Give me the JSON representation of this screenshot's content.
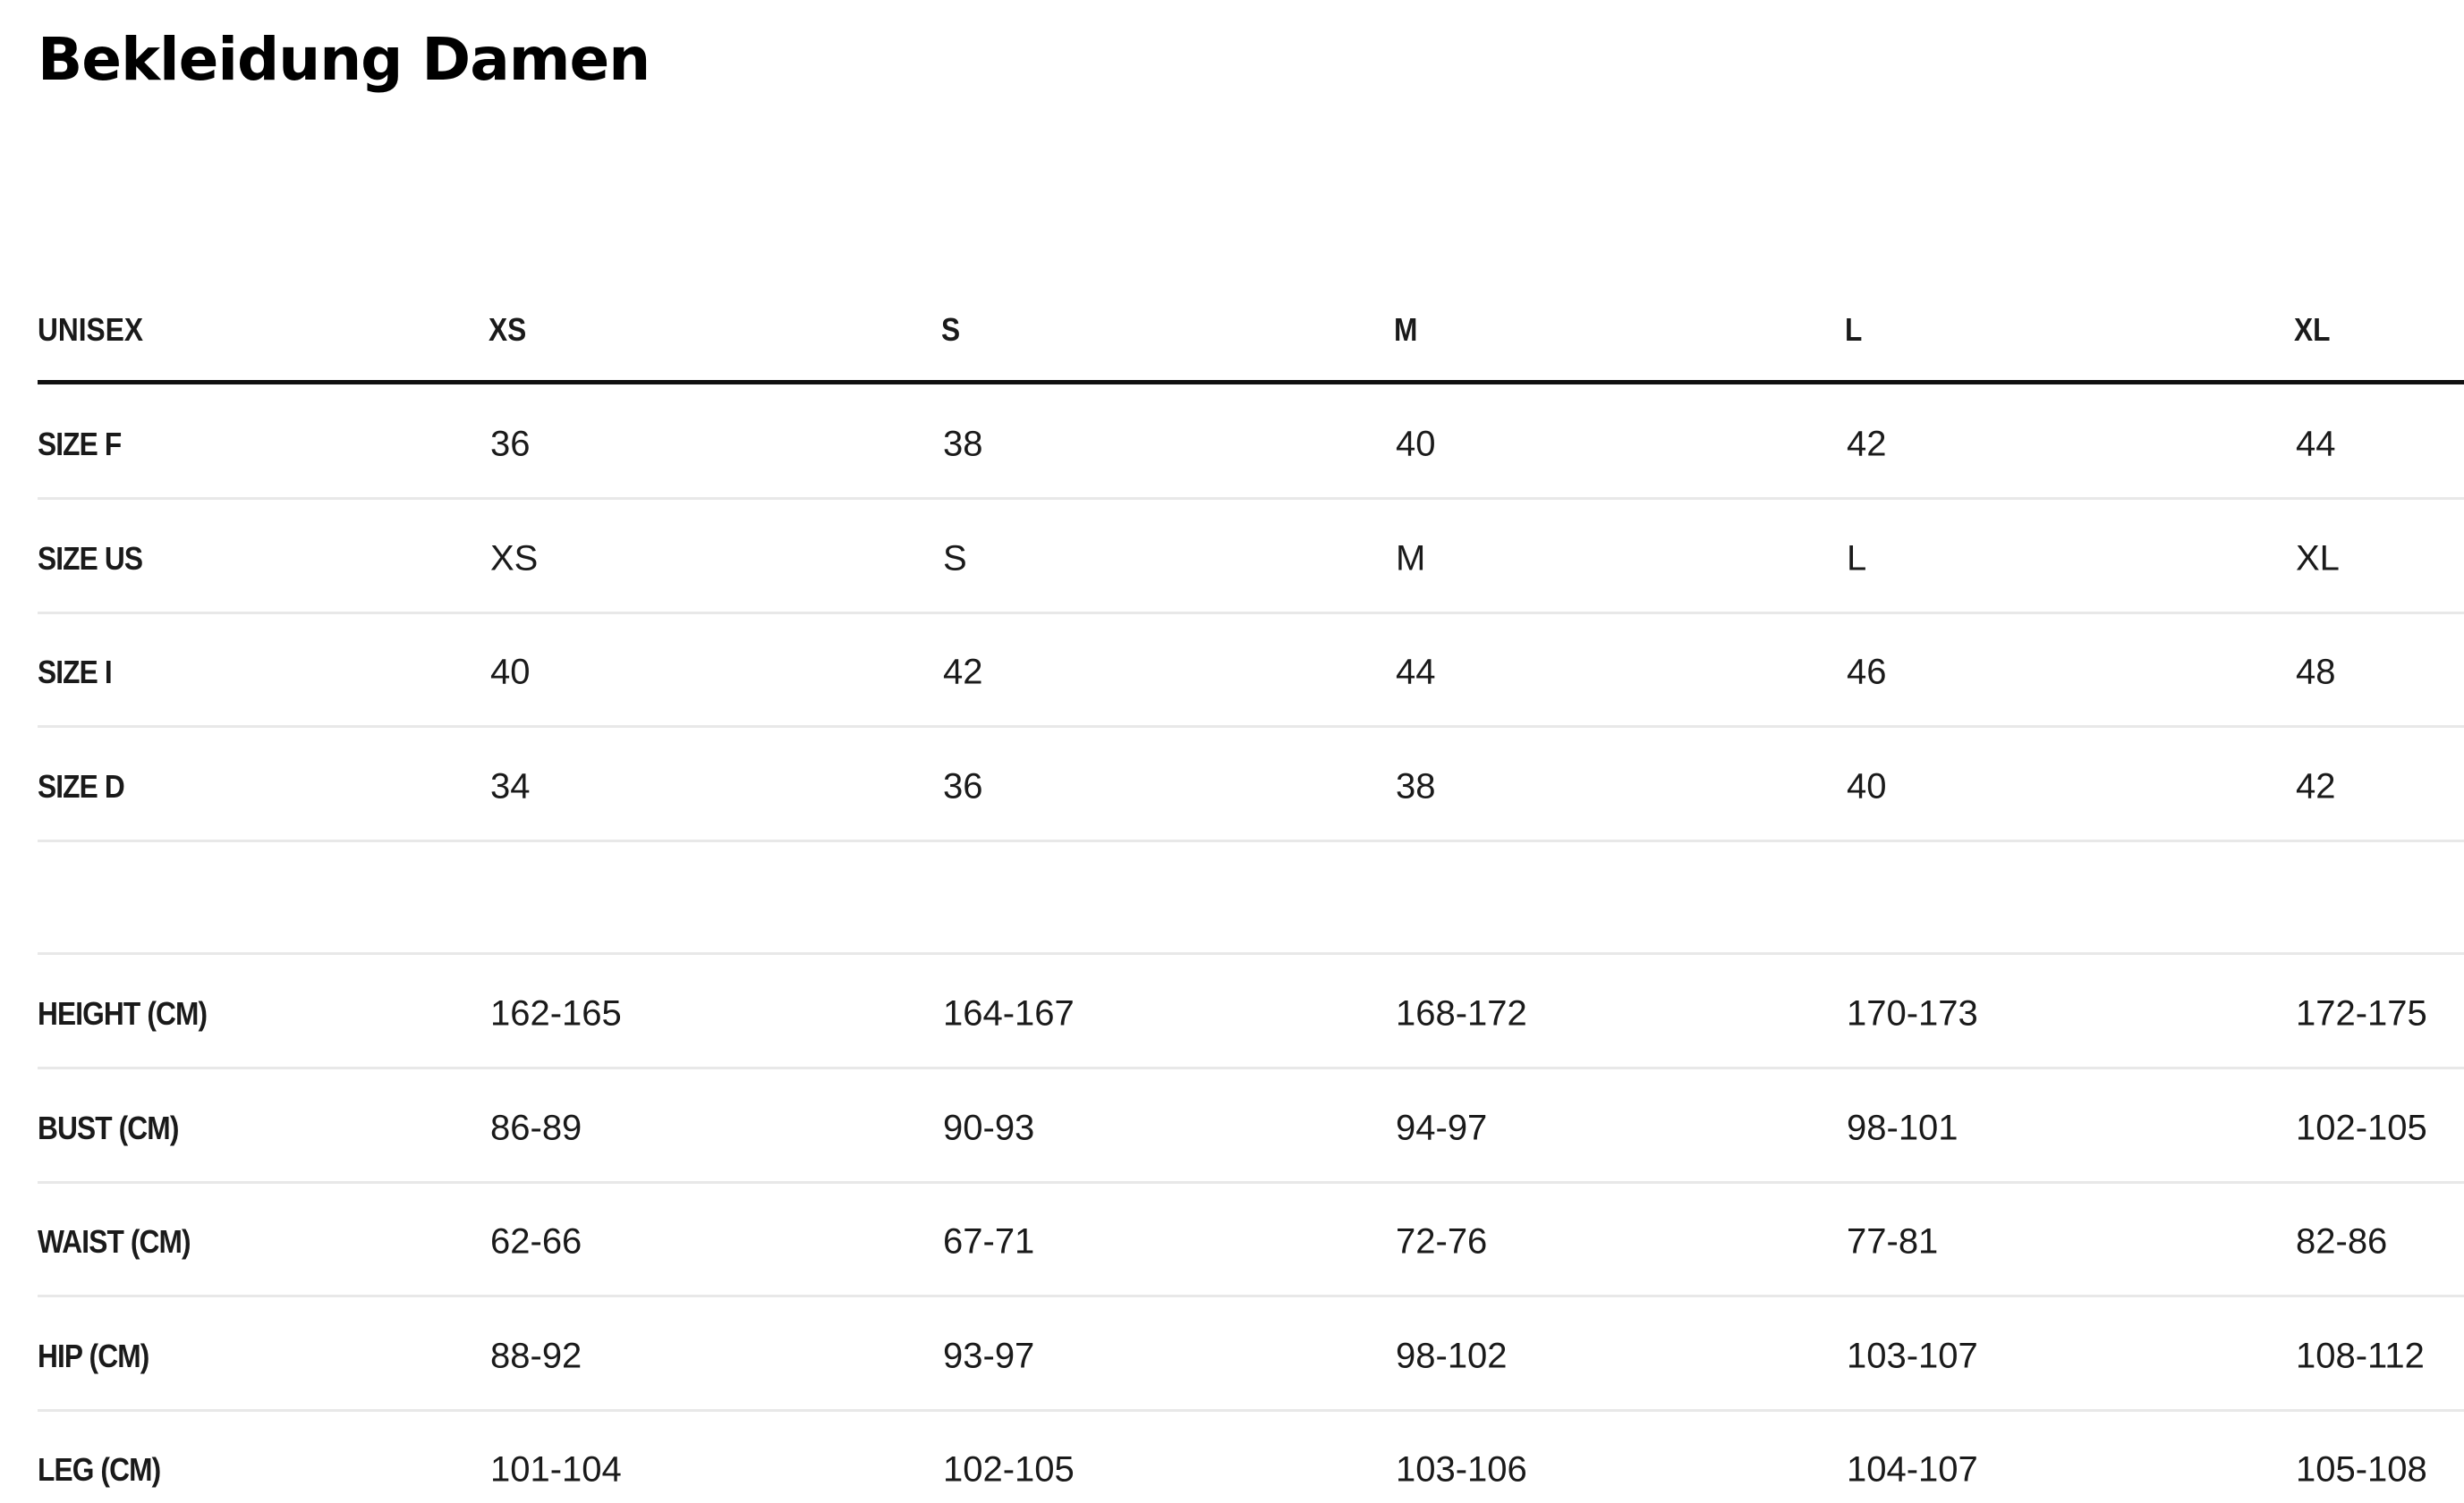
{
  "header": {
    "title": "Bekleidung Damen"
  },
  "table": {
    "columns": [
      "UNISEX",
      "XS",
      "S",
      "M",
      "L",
      "XL"
    ],
    "sizes": [
      [
        "SIZE F",
        "36",
        "38",
        "40",
        "42",
        "44"
      ],
      [
        "SIZE US",
        "XS",
        "S",
        "M",
        "L",
        "XL"
      ],
      [
        "SIZE I",
        "40",
        "42",
        "44",
        "46",
        "48"
      ],
      [
        "SIZE D",
        "34",
        "36",
        "38",
        "40",
        "42"
      ]
    ],
    "measures": [
      [
        "HEIGHT (CM)",
        "162-165",
        "164-167",
        "168-172",
        "170-173",
        "172-175"
      ],
      [
        "BUST (CM)",
        "86-89",
        "90-93",
        "94-97",
        "98-101",
        "102-105"
      ],
      [
        "WAIST (CM)",
        "62-66",
        "67-71",
        "72-76",
        "77-81",
        "82-86"
      ],
      [
        "HIP (CM)",
        "88-92",
        "93-97",
        "98-102",
        "103-107",
        "108-112"
      ],
      [
        "LEG (CM)",
        "101-104",
        "102-105",
        "103-106",
        "104-107",
        "105-108"
      ]
    ]
  }
}
